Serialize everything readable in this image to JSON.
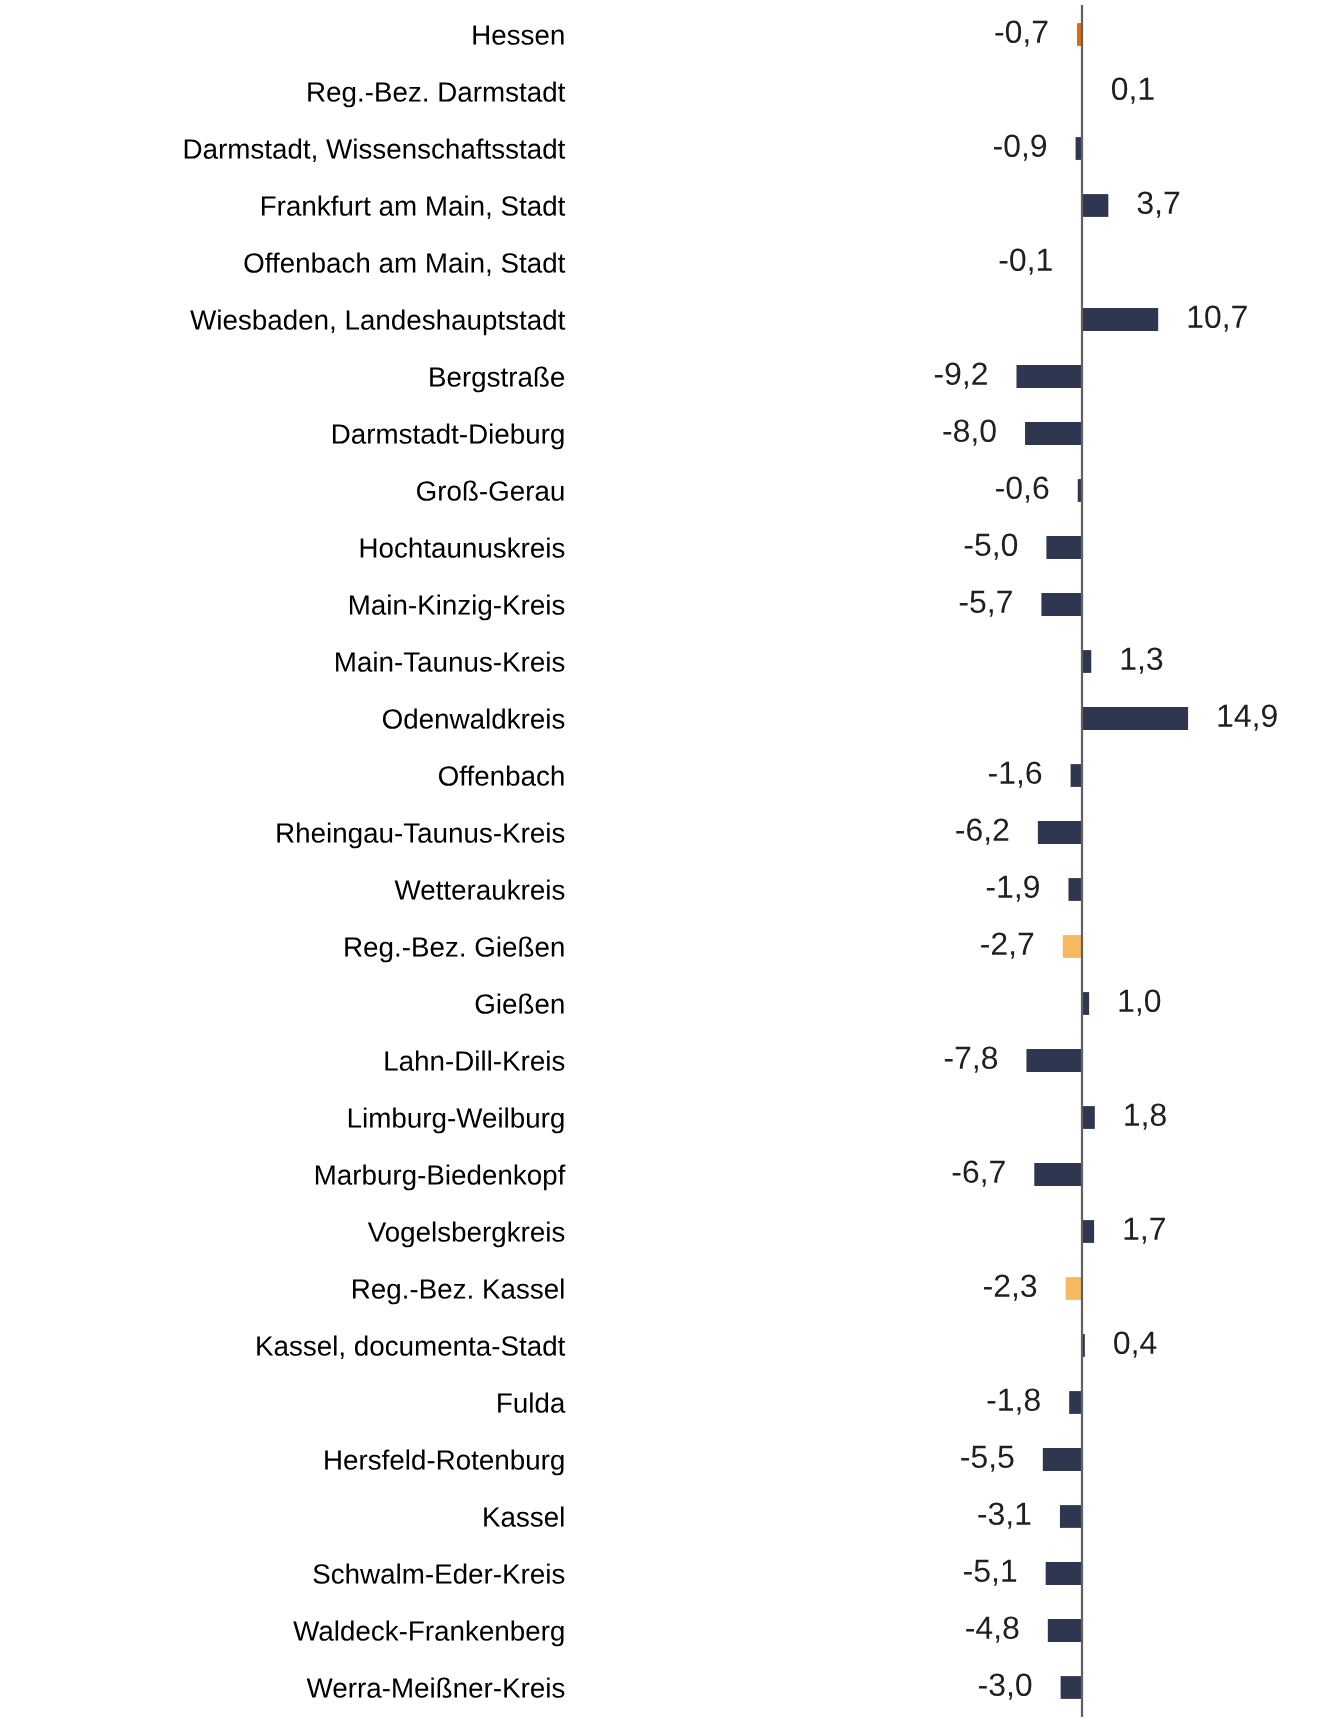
{
  "chart_data": {
    "type": "bar",
    "orientation": "horizontal",
    "categories": [
      "Hessen",
      "Reg.-Bez. Darmstadt",
      "Darmstadt, Wissenschaftsstadt",
      "Frankfurt am Main, Stadt",
      "Offenbach am Main, Stadt",
      "Wiesbaden, Landeshauptstadt",
      "Bergstraße",
      "Darmstadt-Dieburg",
      "Groß-Gerau",
      "Hochtaunuskreis",
      "Main-Kinzig-Kreis",
      "Main-Taunus-Kreis",
      "Odenwaldkreis",
      "Offenbach",
      "Rheingau-Taunus-Kreis",
      "Wetteraukreis",
      "Reg.-Bez. Gießen",
      "Gießen",
      "Lahn-Dill-Kreis",
      "Limburg-Weilburg",
      "Marburg-Biedenkopf",
      "Vogelsbergkreis",
      "Reg.-Bez. Kassel",
      "Kassel, documenta-Stadt",
      "Fulda",
      "Hersfeld-Rotenburg",
      "Kassel",
      "Schwalm-Eder-Kreis",
      "Waldeck-Frankenberg",
      "Werra-Meißner-Kreis"
    ],
    "values": [
      -0.7,
      0.1,
      -0.9,
      3.7,
      -0.1,
      10.7,
      -9.2,
      -8.0,
      -0.6,
      -5.0,
      -5.7,
      1.3,
      14.9,
      -1.6,
      -6.2,
      -1.9,
      -2.7,
      1.0,
      -7.8,
      1.8,
      -6.7,
      1.7,
      -2.3,
      0.4,
      -1.8,
      -5.5,
      -3.1,
      -5.1,
      -4.8,
      -3.0
    ],
    "value_labels": [
      "-0,7",
      "0,1",
      "-0,9",
      "3,7",
      "-0,1",
      "10,7",
      "-9,2",
      "-8,0",
      "-0,6",
      "-5,0",
      "-5,7",
      "1,3",
      "14,9",
      "-1,6",
      "-6,2",
      "-1,9",
      "-2,7",
      "1,0",
      "-7,8",
      "1,8",
      "-6,7",
      "1,7",
      "-2,3",
      "0,4",
      "-1,8",
      "-5,5",
      "-3,1",
      "-5,1",
      "-4,8",
      "-3,0"
    ],
    "colors": [
      "#e36c0a",
      "#f5b95f",
      "#2e3650",
      "#2e3650",
      "#2e3650",
      "#2e3650",
      "#2e3650",
      "#2e3650",
      "#2e3650",
      "#2e3650",
      "#2e3650",
      "#2e3650",
      "#2e3650",
      "#2e3650",
      "#2e3650",
      "#2e3650",
      "#f5b95f",
      "#2e3650",
      "#2e3650",
      "#2e3650",
      "#2e3650",
      "#2e3650",
      "#f5b95f",
      "#2e3650",
      "#2e3650",
      "#2e3650",
      "#2e3650",
      "#2e3650",
      "#2e3650",
      "#2e3650"
    ],
    "grid": false,
    "legend": false
  }
}
